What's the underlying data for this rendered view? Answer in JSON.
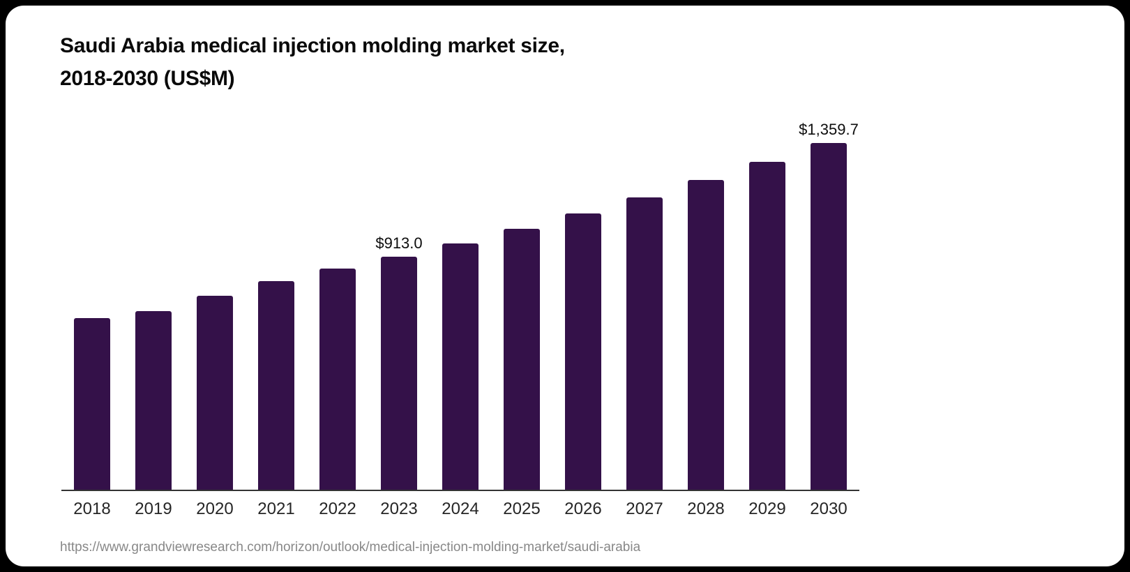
{
  "page": {
    "background_color": "#000000",
    "card_color": "#ffffff"
  },
  "header": {
    "title_line1": "Saudi Arabia medical injection molding market size,",
    "title_line2": "2018-2030 (US$M)"
  },
  "chart_data": {
    "type": "bar",
    "title": "Saudi Arabia medical injection molding market size, 2018-2030 (US$M)",
    "categories": [
      "2018",
      "2019",
      "2020",
      "2021",
      "2022",
      "2023",
      "2024",
      "2025",
      "2026",
      "2027",
      "2028",
      "2029",
      "2030"
    ],
    "values": [
      672,
      700,
      760,
      817,
      866,
      913.0,
      966,
      1023,
      1083,
      1146,
      1213,
      1284,
      1359.7
    ],
    "bar_labels": [
      "",
      "",
      "",
      "",
      "",
      "$913.0",
      "",
      "",
      "",
      "",
      "",
      "",
      "$1,359.7"
    ],
    "labeled_points": [
      {
        "category": "2023",
        "label": "$913.0",
        "value": 913.0
      },
      {
        "category": "2030",
        "label": "$1,359.7",
        "value": 1359.7
      }
    ],
    "xlabel": "",
    "ylabel": "",
    "ylim": [
      0,
      1367
    ],
    "grid": false,
    "legend": false,
    "bar_color": "#341149",
    "axis_color": "#333333",
    "data_label_color": "#0d0d0d",
    "tick_label_color": "#262626"
  },
  "footer": {
    "source_url": "https://www.grandviewresearch.com/horizon/outlook/medical-injection-molding-market/saudi-arabia",
    "source_color": "#888888"
  }
}
